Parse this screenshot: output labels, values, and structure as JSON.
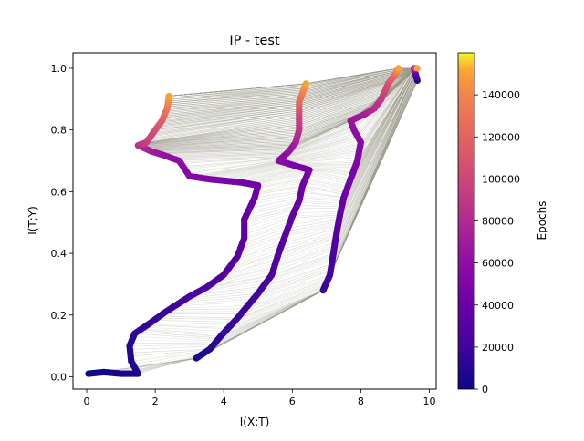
{
  "chart_data": {
    "type": "scatter",
    "title": "IP - test",
    "xlabel": "I(X;T)",
    "ylabel": "I(T;Y)",
    "xlim": [
      -0.4,
      10.2
    ],
    "ylim": [
      -0.04,
      1.05
    ],
    "x_ticks": [
      0,
      2,
      4,
      6,
      8,
      10
    ],
    "y_ticks": [
      0.0,
      0.2,
      0.4,
      0.6,
      0.8,
      1.0
    ],
    "x_tick_labels": [
      "0",
      "2",
      "4",
      "6",
      "8",
      "10"
    ],
    "y_tick_labels": [
      "0.0",
      "0.2",
      "0.4",
      "0.6",
      "0.8",
      "1.0"
    ],
    "grid": false,
    "colormap": "plasma",
    "colorbar": {
      "label": "Epochs",
      "range": [
        0,
        160000
      ],
      "ticks": [
        0,
        20000,
        40000,
        60000,
        80000,
        100000,
        120000,
        140000
      ],
      "tick_labels": [
        "0",
        "20000",
        "40000",
        "60000",
        "80000",
        "100000",
        "120000",
        "140000"
      ]
    },
    "series": [
      {
        "points": [
          [
            0.05,
            0.01,
            0
          ],
          [
            0.5,
            0.015,
            2000
          ],
          [
            1.0,
            0.01,
            4000
          ],
          [
            1.5,
            0.01,
            6000
          ],
          [
            1.3,
            0.05,
            8000
          ],
          [
            1.25,
            0.1,
            10000
          ],
          [
            1.4,
            0.14,
            12000
          ],
          [
            1.8,
            0.17,
            15000
          ],
          [
            2.3,
            0.21,
            18000
          ],
          [
            3.0,
            0.26,
            22000
          ],
          [
            3.5,
            0.29,
            25000
          ],
          [
            4.0,
            0.33,
            28000
          ],
          [
            4.4,
            0.39,
            31000
          ],
          [
            4.6,
            0.45,
            34000
          ],
          [
            4.6,
            0.51,
            37000
          ],
          [
            4.9,
            0.58,
            40000
          ],
          [
            5.0,
            0.62,
            43000
          ],
          [
            4.5,
            0.63,
            46000
          ],
          [
            3.6,
            0.64,
            50000
          ],
          [
            3.0,
            0.65,
            54000
          ],
          [
            2.7,
            0.7,
            58000
          ],
          [
            2.2,
            0.72,
            63000
          ],
          [
            1.9,
            0.73,
            68000
          ],
          [
            1.7,
            0.74,
            75000
          ],
          [
            1.5,
            0.75,
            85000
          ],
          [
            1.75,
            0.76,
            95000
          ],
          [
            2.0,
            0.8,
            105000
          ],
          [
            2.2,
            0.83,
            115000
          ],
          [
            2.35,
            0.87,
            130000
          ],
          [
            2.4,
            0.91,
            150000
          ]
        ]
      },
      {
        "points": [
          [
            3.2,
            0.06,
            5000
          ],
          [
            3.6,
            0.09,
            9000
          ],
          [
            3.9,
            0.13,
            13000
          ],
          [
            4.4,
            0.19,
            17000
          ],
          [
            5.0,
            0.27,
            21000
          ],
          [
            5.4,
            0.33,
            25000
          ],
          [
            5.6,
            0.4,
            29000
          ],
          [
            5.8,
            0.46,
            32000
          ],
          [
            6.0,
            0.52,
            35000
          ],
          [
            6.2,
            0.57,
            38000
          ],
          [
            6.3,
            0.62,
            41000
          ],
          [
            6.5,
            0.67,
            45000
          ],
          [
            5.9,
            0.69,
            50000
          ],
          [
            5.6,
            0.7,
            55000
          ],
          [
            5.9,
            0.73,
            62000
          ],
          [
            6.1,
            0.76,
            72000
          ],
          [
            6.2,
            0.8,
            85000
          ],
          [
            6.2,
            0.85,
            100000
          ],
          [
            6.2,
            0.89,
            120000
          ],
          [
            6.3,
            0.92,
            135000
          ],
          [
            6.4,
            0.95,
            150000
          ]
        ]
      },
      {
        "points": [
          [
            6.9,
            0.28,
            15000
          ],
          [
            7.1,
            0.33,
            20000
          ],
          [
            7.2,
            0.4,
            25000
          ],
          [
            7.3,
            0.47,
            30000
          ],
          [
            7.4,
            0.53,
            35000
          ],
          [
            7.5,
            0.58,
            40000
          ],
          [
            7.7,
            0.64,
            45000
          ],
          [
            7.9,
            0.7,
            50000
          ],
          [
            8.0,
            0.76,
            55000
          ],
          [
            7.8,
            0.8,
            60000
          ],
          [
            7.7,
            0.83,
            65000
          ],
          [
            8.1,
            0.85,
            72000
          ],
          [
            8.4,
            0.87,
            80000
          ],
          [
            8.6,
            0.9,
            90000
          ],
          [
            8.8,
            0.95,
            105000
          ],
          [
            9.0,
            0.98,
            125000
          ],
          [
            9.1,
            1.0,
            150000
          ]
        ]
      },
      {
        "points": [
          [
            9.65,
            0.96,
            5000
          ],
          [
            9.6,
            0.98,
            20000
          ],
          [
            9.55,
            1.0,
            60000
          ],
          [
            9.65,
            1.0,
            150000
          ]
        ]
      }
    ]
  }
}
